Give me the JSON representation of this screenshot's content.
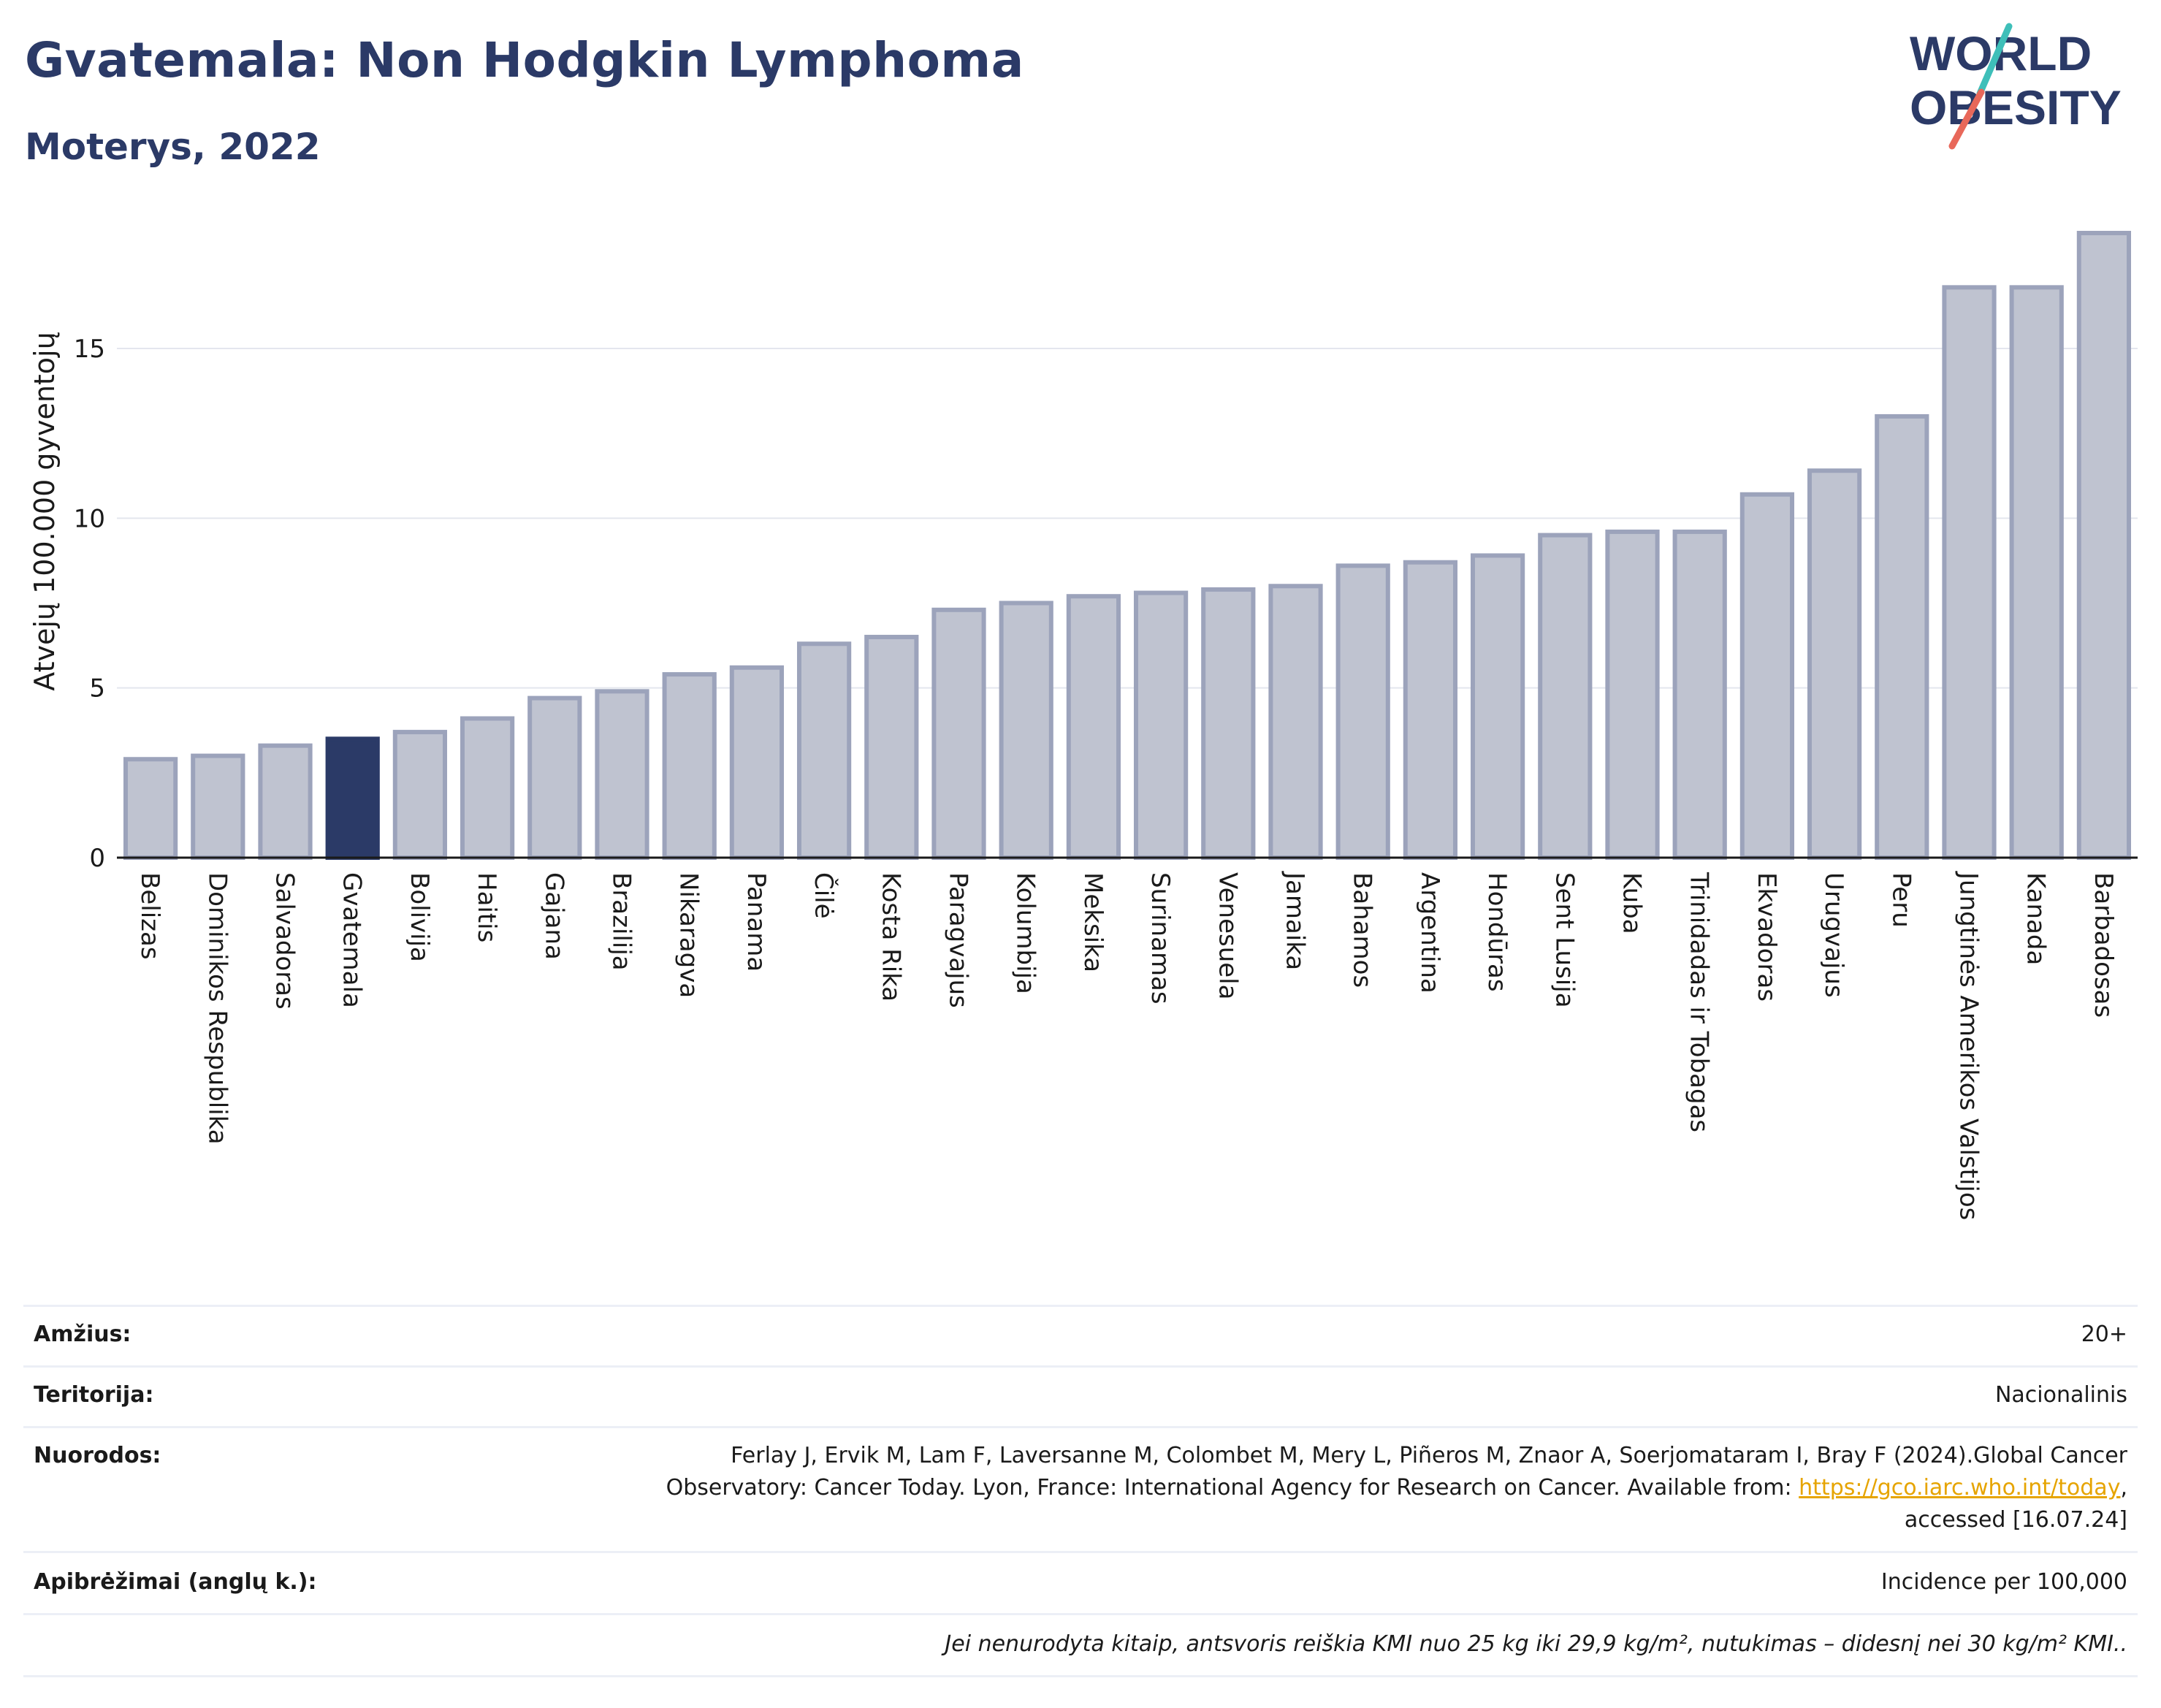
{
  "header": {
    "title": "Gvatemala: Non Hodgkin Lymphoma",
    "subtitle": "Moterys, 2022"
  },
  "logo": {
    "line1": "WORLD",
    "line2": "OBESITY",
    "colors": {
      "text": "#2b3a67",
      "slash_top": "#3ebfb9",
      "slash_bottom": "#e8685a"
    }
  },
  "chart_data": {
    "type": "bar",
    "ylabel": "Atvejų 100.000 gyventojų",
    "xlabel": "",
    "ylim": [
      0,
      18.5
    ],
    "yticks": [
      0,
      5,
      10,
      15
    ],
    "grid": true,
    "highlight": "Gvatemala",
    "colors": {
      "bar": "#bfc3d0",
      "bar_border": "#9ca3bb",
      "highlight": "#2b3a67"
    },
    "categories": [
      "Belizas",
      "Dominikos Respublika",
      "Salvadoras",
      "Gvatemala",
      "Bolivija",
      "Haitis",
      "Gajana",
      "Brazilija",
      "Nikaragva",
      "Panama",
      "Čilė",
      "Kosta Rika",
      "Paragvajus",
      "Kolumbija",
      "Meksika",
      "Surinamas",
      "Venesuela",
      "Jamaika",
      "Bahamos",
      "Argentina",
      "Hondūras",
      "Sent Lusija",
      "Kuba",
      "Trinidadas ir Tobagas",
      "Ekvadoras",
      "Urugvajus",
      "Peru",
      "Jungtinės Amerikos Valstijos",
      "Kanada",
      "Barbadosas"
    ],
    "values": [
      2.9,
      3.0,
      3.3,
      3.5,
      3.7,
      4.1,
      4.7,
      4.9,
      5.4,
      5.6,
      6.3,
      6.5,
      7.3,
      7.5,
      7.7,
      7.8,
      7.9,
      8.0,
      8.6,
      8.7,
      8.9,
      9.5,
      9.6,
      9.6,
      10.7,
      11.4,
      13.0,
      16.8,
      16.8,
      18.4
    ]
  },
  "meta": {
    "age_label": "Amžius:",
    "age_value": "20+",
    "territory_label": "Teritorija:",
    "territory_value": "Nacionalinis",
    "refs_label": "Nuorodos:",
    "refs_line1": "Ferlay J, Ervik M, Lam F, Laversanne M, Colombet M, Mery L, Piñeros M, Znaor A, Soerjomataram I, Bray F (2024).Global Cancer",
    "refs_line2_pre": "Observatory: Cancer Today. Lyon, France: International Agency for Research on Cancer. Available from: ",
    "refs_link": "https://gco.iarc.who.int/today",
    "refs_line2_post": ",",
    "refs_line3": "accessed [16.07.24]",
    "definitions_label": "Apibrėžimai (anglų k.):",
    "definitions_value": "Incidence per 100,000",
    "note": "Jei nenurodyta kitaip, antsvoris reiškia KMI nuo 25 kg iki 29,9 kg/m², nutukimas – didesnį nei 30 kg/m² KMI.."
  }
}
